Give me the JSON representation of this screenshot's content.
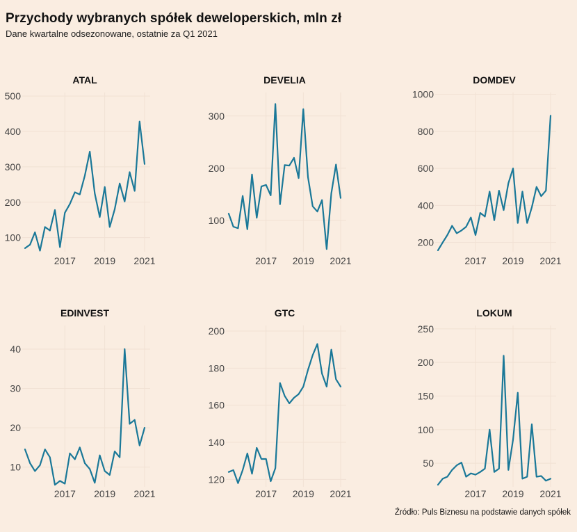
{
  "title": "Przychody wybranych spółek deweloperskich, mln zł",
  "subtitle": "Dane kwartalne odsezonowane, ostatnie za Q1 2021",
  "source": "Źródło: Puls Biznesu na podstawie danych spółek",
  "colors": {
    "line": "#1A7898",
    "background": "#FAEDE1",
    "grid": "#F1E1D4"
  },
  "chart_data": [
    {
      "type": "line",
      "title": "ATAL",
      "x_start": 2015.0,
      "x_step": 0.25,
      "xticks": [
        2017,
        2019,
        2021
      ],
      "yticks": [
        100,
        200,
        300,
        400,
        500
      ],
      "ylim": [
        60,
        510
      ],
      "values": [
        70,
        80,
        115,
        63,
        130,
        120,
        178,
        73,
        170,
        195,
        228,
        222,
        275,
        343,
        225,
        158,
        243,
        130,
        180,
        253,
        202,
        285,
        232,
        428,
        308
      ]
    },
    {
      "type": "line",
      "title": "DEVELIA",
      "x_start": 2015.0,
      "x_step": 0.25,
      "xticks": [
        2017,
        2019,
        2021
      ],
      "yticks": [
        100,
        200,
        300
      ],
      "ylim": [
        40,
        345
      ],
      "values": [
        113,
        88,
        85,
        147,
        83,
        188,
        105,
        165,
        168,
        148,
        323,
        131,
        206,
        205,
        220,
        181,
        313,
        183,
        127,
        117,
        139,
        45,
        152,
        207,
        143
      ]
    },
    {
      "type": "line",
      "title": "DOMDEV",
      "x_start": 2015.0,
      "x_step": 0.25,
      "xticks": [
        2017,
        2019,
        2021
      ],
      "yticks": [
        200,
        400,
        600,
        800,
        1000
      ],
      "ylim": [
        150,
        1010
      ],
      "values": [
        158,
        200,
        240,
        290,
        250,
        265,
        285,
        335,
        240,
        360,
        340,
        475,
        320,
        480,
        375,
        520,
        600,
        305,
        475,
        305,
        390,
        500,
        450,
        480,
        885
      ]
    },
    {
      "type": "line",
      "title": "EDINVEST",
      "x_start": 2015.0,
      "x_step": 0.25,
      "xticks": [
        2017,
        2019,
        2021
      ],
      "yticks": [
        10,
        20,
        30,
        40
      ],
      "ylim": [
        5,
        46
      ],
      "values": [
        14.5,
        11,
        9,
        10.5,
        14.5,
        12.5,
        5.5,
        6.5,
        5.8,
        13.5,
        12,
        15,
        11,
        9.5,
        6,
        13,
        9,
        8,
        14,
        12.5,
        40,
        21,
        22,
        15.5,
        20
      ]
    },
    {
      "type": "line",
      "title": "GTC",
      "x_start": 2015.0,
      "x_step": 0.25,
      "xticks": [
        2017,
        2019,
        2021
      ],
      "yticks": [
        120,
        140,
        160,
        180,
        200
      ],
      "ylim": [
        116,
        203
      ],
      "values": [
        124,
        125,
        118,
        125,
        134,
        123,
        137,
        131,
        131,
        119,
        126,
        172,
        165,
        161,
        164,
        166,
        170,
        179,
        187,
        193,
        177,
        170,
        190,
        174,
        170
      ]
    },
    {
      "type": "line",
      "title": "LOKUM",
      "x_start": 2015.0,
      "x_step": 0.25,
      "xticks": [
        2017,
        2019,
        2021
      ],
      "yticks": [
        50,
        100,
        150,
        200,
        250
      ],
      "ylim": [
        15,
        255
      ],
      "values": [
        18,
        27,
        30,
        40,
        47,
        51,
        30,
        35,
        33,
        37,
        42,
        100,
        37,
        42,
        210,
        40,
        85,
        155,
        27,
        30,
        108,
        30,
        31,
        24,
        27
      ]
    }
  ]
}
